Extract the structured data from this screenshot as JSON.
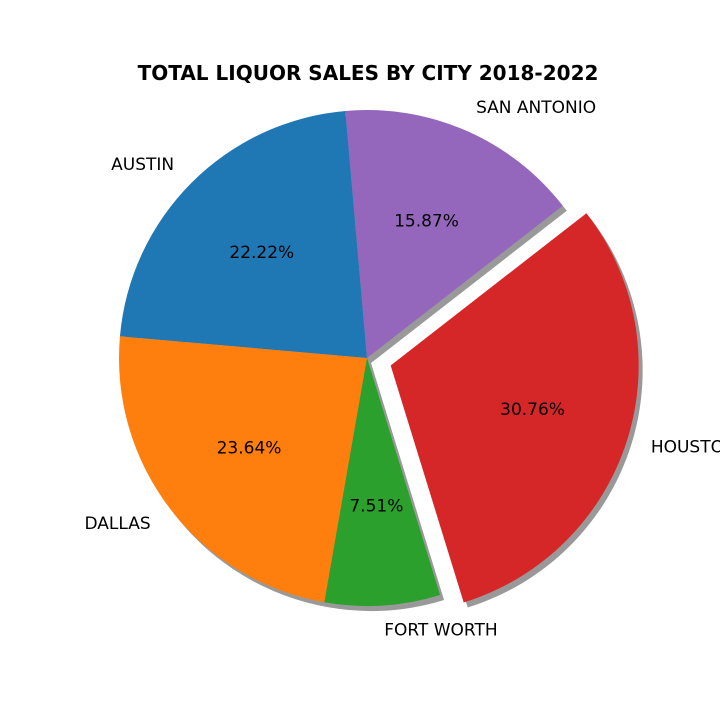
{
  "chart_data": {
    "type": "pie",
    "title": "TOTAL LIQUOR SALES BY CITY 2018-2022",
    "slices": [
      {
        "label": "AUSTIN",
        "value": 22.22,
        "value_label": "22.22%",
        "color": "#1f77b4",
        "explode": 0
      },
      {
        "label": "DALLAS",
        "value": 23.64,
        "value_label": "23.64%",
        "color": "#ff7f0e",
        "explode": 0
      },
      {
        "label": "FORT WORTH",
        "value": 7.51,
        "value_label": "7.51%",
        "color": "#2ca02c",
        "explode": 0
      },
      {
        "label": "HOUSTON",
        "value": 30.76,
        "value_label": "30.76%",
        "color": "#d62728",
        "explode": 0.1
      },
      {
        "label": "SAN ANTONIO",
        "value": 15.87,
        "value_label": "15.87%",
        "color": "#9467bd",
        "explode": 0
      }
    ],
    "start_angle_deg": 95,
    "direction": "counterclockwise",
    "shadow": true
  }
}
